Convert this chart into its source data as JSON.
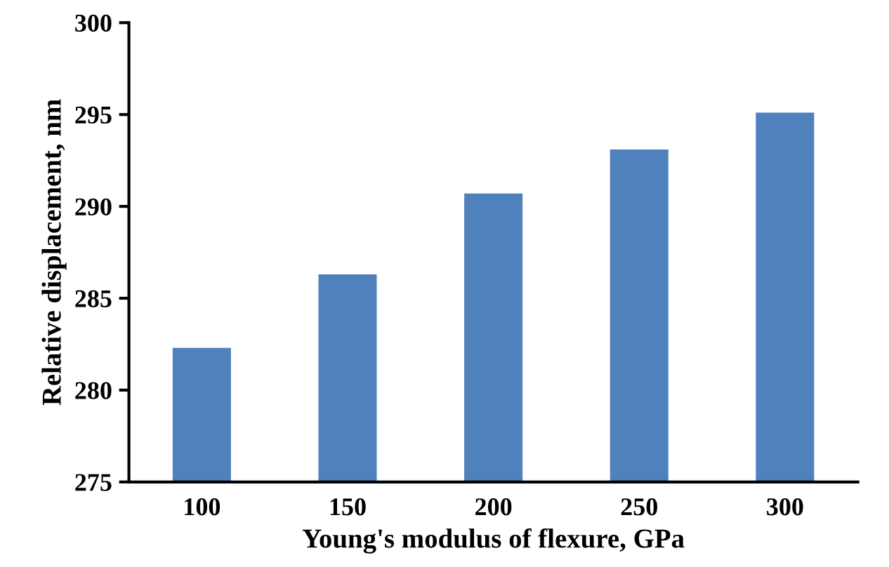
{
  "chart_data": {
    "type": "bar",
    "xlabel": "Young's modulus of flexure, GPa",
    "ylabel": "Relative displacement, nm",
    "categories": [
      "100",
      "150",
      "200",
      "250",
      "300"
    ],
    "values": [
      282.3,
      286.3,
      290.7,
      293.1,
      295.1
    ],
    "color": "#4f81bd",
    "ylim": [
      275,
      300
    ],
    "yticks": [
      275,
      280,
      285,
      290,
      295,
      300
    ],
    "grid": false
  }
}
